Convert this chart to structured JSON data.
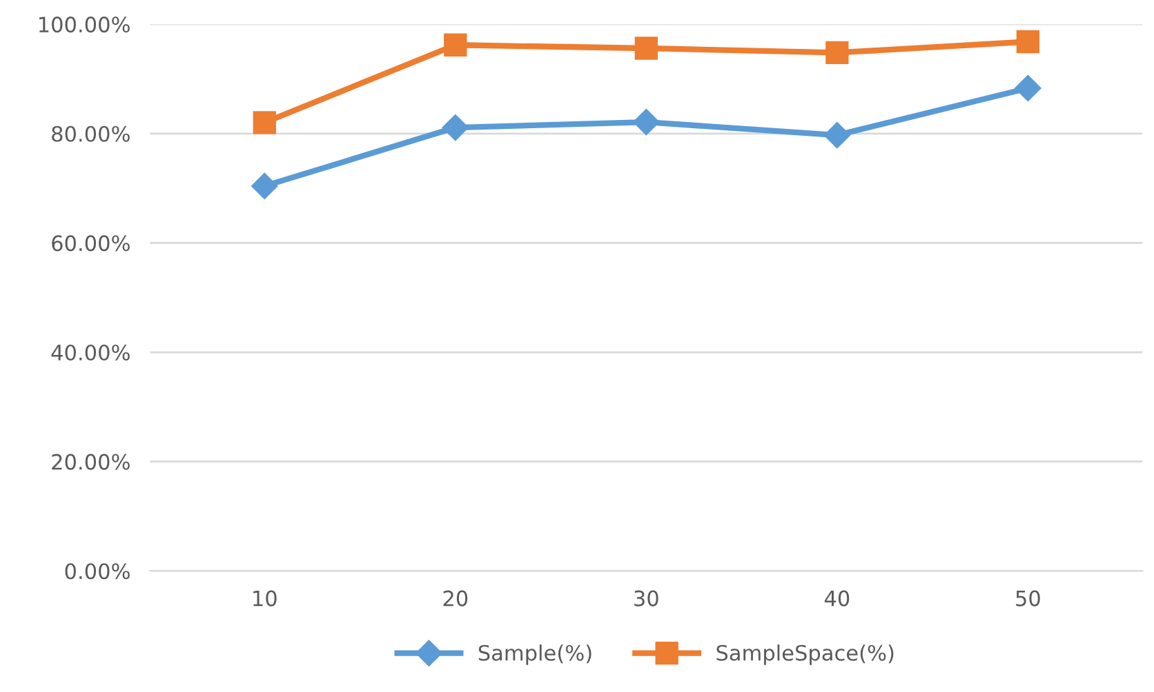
{
  "chart_data": {
    "type": "line",
    "categories": [
      "10",
      "20",
      "30",
      "40",
      "50"
    ],
    "series": [
      {
        "name": "Sample(%)",
        "color": "#5b9bd5",
        "marker": "diamond",
        "values": [
          70.4,
          81.1,
          82.1,
          79.7,
          88.3
        ]
      },
      {
        "name": "SampleSpace(%)",
        "color": "#ed7d31",
        "marker": "square",
        "values": [
          82.0,
          96.2,
          95.6,
          94.8,
          96.8
        ]
      }
    ],
    "ylim": [
      0,
      100
    ],
    "yticks": [
      {
        "value": 0,
        "label": "0.00%"
      },
      {
        "value": 20,
        "label": "20.00%"
      },
      {
        "value": 40,
        "label": "40.00%"
      },
      {
        "value": 60,
        "label": "60.00%"
      },
      {
        "value": 80,
        "label": "80.00%"
      },
      {
        "value": 100,
        "label": "100.00%"
      }
    ],
    "grid": "y",
    "legend": "bottom",
    "line_style": "solid"
  }
}
